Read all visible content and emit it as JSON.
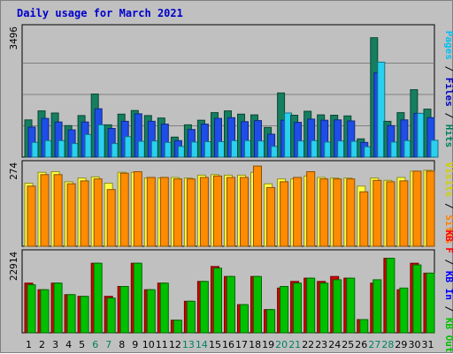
{
  "chart_data": {
    "type": "bar",
    "title": "Daily usage for March 2021",
    "categories": [
      "1",
      "2",
      "3",
      "4",
      "5",
      "6",
      "7",
      "8",
      "9",
      "10",
      "11",
      "12",
      "13",
      "14",
      "15",
      "16",
      "17",
      "18",
      "19",
      "20",
      "21",
      "22",
      "23",
      "24",
      "25",
      "26",
      "27",
      "28",
      "29",
      "30",
      "31"
    ],
    "weekend_days": [
      "6",
      "7",
      "13",
      "14",
      "20",
      "21",
      "27",
      "28"
    ],
    "panels": [
      {
        "name": "requests",
        "max_label": "3496",
        "ymax": 3496,
        "series": [
          {
            "name": "Hits",
            "color": "#157f5f",
            "values": [
              1040,
              1290,
              1230,
              880,
              1160,
              1760,
              900,
              1200,
              1300,
              1160,
              1090,
              560,
              900,
              1030,
              1240,
              1290,
              1200,
              1180,
              830,
              1790,
              1170,
              1280,
              1180,
              1170,
              1150,
              510,
              3330,
              1000,
              1240,
              1880,
              1340
            ]
          },
          {
            "name": "Files",
            "color": "#1e4de8",
            "values": [
              840,
              1080,
              980,
              760,
              980,
              1350,
              800,
              1000,
              1210,
              1000,
              920,
              460,
              770,
              920,
              1080,
              1100,
              990,
              1020,
              640,
              1030,
              970,
              1060,
              1030,
              1040,
              1010,
              410,
              2350,
              880,
              1040,
              1220,
              1100
            ]
          },
          {
            "name": "Pages",
            "color": "#2ad0f0",
            "values": [
              410,
              460,
              460,
              380,
              630,
              900,
              380,
              570,
              440,
              450,
              410,
              300,
              420,
              430,
              430,
              460,
              460,
              450,
              300,
              1230,
              450,
              460,
              420,
              450,
              440,
              290,
              2650,
              420,
              460,
              1220,
              470
            ]
          }
        ]
      },
      {
        "name": "visits",
        "max_label": "274",
        "ymax": 274,
        "series": [
          {
            "name": "Visits",
            "color": "#ffff40",
            "values": [
              220,
              258,
              260,
              225,
              238,
              242,
              220,
              258,
              258,
              238,
              238,
              240,
              238,
              248,
              250,
              248,
              248,
              258,
              218,
              235,
              235,
              245,
              240,
              238,
              238,
              210,
              238,
              230,
              240,
              262,
              265
            ]
          },
          {
            "name": "Sites",
            "color": "#ff8c00",
            "values": [
              210,
              250,
              250,
              218,
              228,
              235,
              198,
              255,
              260,
              240,
              240,
              235,
              235,
              240,
              245,
              240,
              240,
              280,
              205,
              225,
              240,
              260,
              235,
              235,
              235,
              190,
              230,
              225,
              228,
              262,
              262
            ]
          }
        ]
      },
      {
        "name": "kbytes",
        "max_label": "22914",
        "ymax": 22914,
        "series": [
          {
            "name": "KB F",
            "color": "#d00000",
            "values": [
              15000,
              13000,
              15000,
              11500,
              11000,
              21000,
              11000,
              14000,
              21000,
              13000,
              15000,
              3800,
              9500,
              15500,
              20000,
              17000,
              8500,
              17000,
              7000,
              13500,
              15500,
              16500,
              15500,
              17000,
              16500,
              4000,
              15000,
              22500,
              13000,
              21000,
              18000
            ]
          },
          {
            "name": "KB In",
            "color": "#0000d0",
            "values": [
              0,
              0,
              0,
              0,
              0,
              0,
              0,
              0,
              0,
              0,
              0,
              0,
              0,
              0,
              0,
              0,
              0,
              0,
              0,
              0,
              0,
              0,
              0,
              0,
              0,
              0,
              0,
              0,
              0,
              0,
              0
            ]
          },
          {
            "name": "KB Out",
            "color": "#00c000",
            "values": [
              14500,
              13000,
              15000,
              11500,
              11000,
              21000,
              10500,
              14000,
              21000,
              13000,
              15000,
              3800,
              9500,
              15500,
              19500,
              17000,
              8500,
              17000,
              7000,
              14000,
              15000,
              16500,
              15000,
              16000,
              16500,
              4000,
              16000,
              22500,
              13500,
              20500,
              18000
            ]
          }
        ]
      }
    ],
    "legend_right": [
      [
        {
          "text": "Pages",
          "color": "#00c0f0"
        },
        {
          "text": "Files",
          "color": "#0000c0"
        },
        {
          "text": "Hits",
          "color": "#008060"
        }
      ],
      [
        {
          "text": "Visits",
          "color": "#d0d000"
        },
        {
          "text": "Sites",
          "color": "#ff8000"
        }
      ],
      [
        {
          "text": "KB F",
          "color": "#ff0000"
        },
        {
          "text": "KB In",
          "color": "#0000ff"
        },
        {
          "text": "KB Out",
          "color": "#00c000"
        }
      ]
    ],
    "legend_separator": " / ",
    "weekday_label_color": "#000000",
    "weekend_label_color": "#008060"
  }
}
